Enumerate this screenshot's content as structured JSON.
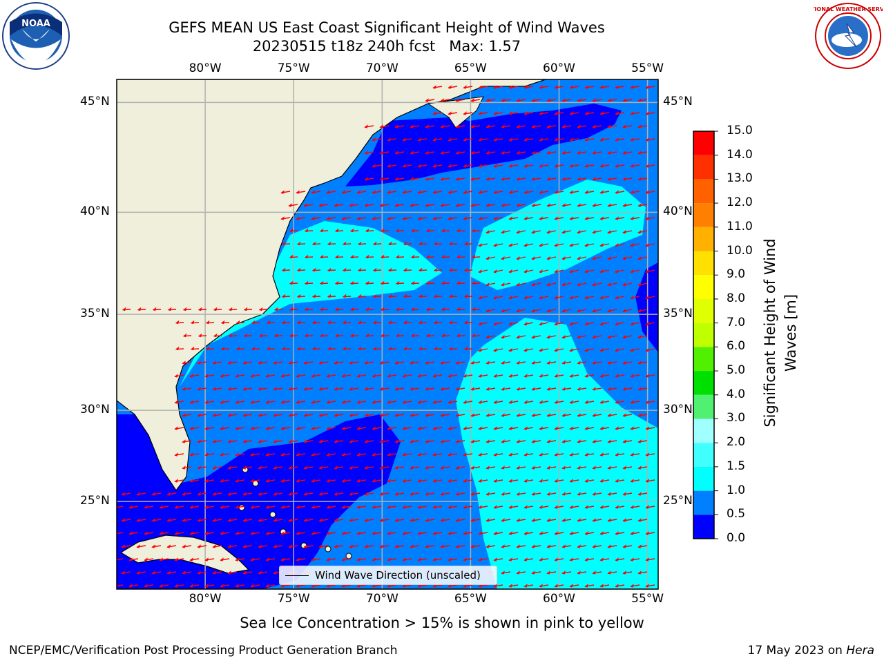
{
  "header": {
    "title_line1": "GEFS MEAN US East Coast Significant Height of Wind Waves",
    "title_line2": "20230515 t18z 240h fcst   Max: 1.57"
  },
  "logos": {
    "left": "noaa-logo",
    "right": "national-weather-service-logo",
    "left_text": "NOAA",
    "right_text": "NATIONAL WEATHER SERVICE"
  },
  "map": {
    "lon_labels": [
      "80°W",
      "75°W",
      "70°W",
      "65°W",
      "60°W",
      "55°W"
    ],
    "lat_labels": [
      "45°N",
      "40°N",
      "35°N",
      "30°N",
      "25°N"
    ],
    "lon_values": [
      -80,
      -75,
      -70,
      -65,
      -60,
      -55
    ],
    "lat_values": [
      45,
      40,
      35,
      30,
      25
    ],
    "extent": {
      "lon": [
        -85,
        -54.4
      ],
      "lat": [
        20,
        46
      ]
    },
    "land_color": "#efefdb",
    "arrow_color": "#ff0000",
    "grid_color": "#b0b0b0",
    "legend_label": "Wind Wave Direction (unscaled)"
  },
  "colorbar": {
    "title_line1": "Significant Height of Wind",
    "title_line2": "Waves [m]",
    "ticks": [
      "0.0",
      "0.5",
      "1.0",
      "1.5",
      "2.0",
      "3.0",
      "4.0",
      "5.0",
      "6.0",
      "7.0",
      "8.0",
      "9.0",
      "10.0",
      "11.0",
      "12.0",
      "13.0",
      "14.0",
      "15.0"
    ],
    "colors": [
      "#0000ff",
      "#0080ff",
      "#00ffff",
      "#40ffff",
      "#a0ffff",
      "#50f070",
      "#00e000",
      "#50f000",
      "#c0ff00",
      "#e0ff00",
      "#ffff00",
      "#ffe000",
      "#ffb000",
      "#ff8000",
      "#ff6000",
      "#ff3000",
      "#ff0000"
    ]
  },
  "chart_data": {
    "type": "heatmap",
    "title": "GEFS MEAN US East Coast Significant Height of Wind Waves",
    "subtitle": "20230515 t18z 240h fcst   Max: 1.57",
    "max_value": 1.57,
    "units": "m",
    "levels": [
      0.0,
      0.5,
      1.0,
      1.5,
      2.0,
      3.0,
      4.0,
      5.0,
      6.0,
      7.0,
      8.0,
      9.0,
      10.0,
      11.0,
      12.0,
      13.0,
      14.0,
      15.0
    ],
    "regions": [
      {
        "lon": [
          -85,
          -71
        ],
        "lat": [
          20,
          29
        ],
        "range": "0.0-0.5"
      },
      {
        "lon": [
          -73,
          -61
        ],
        "lat": [
          42,
          45
        ],
        "range": "0.0-0.5"
      },
      {
        "lon": [
          -66,
          -54.4
        ],
        "lat": [
          20,
          31
        ],
        "range": "1.0-1.5"
      },
      {
        "lon": [
          -79,
          -67
        ],
        "lat": [
          33,
          38
        ],
        "range": "1.0-1.5"
      },
      {
        "lon": [
          -64,
          -55
        ],
        "lat": [
          36,
          40
        ],
        "range": "1.0-1.5"
      }
    ]
  },
  "footer": {
    "note": "Sea Ice Concentration > 15% is shown in pink to yellow",
    "credit": "NCEP/EMC/Verification Post Processing Product Generation Branch",
    "date": "17 May 2023 on ",
    "machine": "Hera"
  }
}
